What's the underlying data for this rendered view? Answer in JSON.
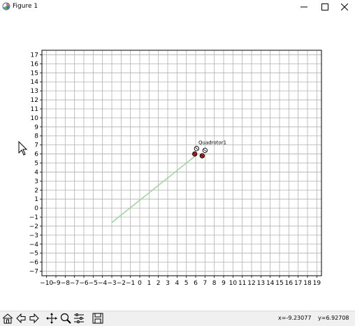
{
  "window": {
    "title": "Figure 1"
  },
  "icons": {
    "app": "matplotlib-figure-icon",
    "minimize": "minimize-icon",
    "maximize": "maximize-icon",
    "close": "close-icon"
  },
  "toolbar": {
    "buttons": [
      {
        "name": "home-button",
        "icon": "home-icon"
      },
      {
        "name": "back-button",
        "icon": "arrow-left-icon"
      },
      {
        "name": "forward-button",
        "icon": "arrow-right-icon"
      },
      {
        "name": "pan-button",
        "icon": "move-icon"
      },
      {
        "name": "zoom-button",
        "icon": "zoom-icon"
      },
      {
        "name": "configure-subplots-button",
        "icon": "sliders-icon"
      },
      {
        "name": "save-button",
        "icon": "save-icon"
      }
    ],
    "coords_x": "x=-9.23077",
    "coords_y": "y=6.92708"
  },
  "chart_data": {
    "type": "line",
    "xlim": [
      -10.5,
      19.5
    ],
    "ylim": [
      -7.5,
      17.5
    ],
    "xticks": [
      -10,
      -9,
      -8,
      -7,
      -6,
      -5,
      -4,
      -3,
      -2,
      -1,
      0,
      1,
      2,
      3,
      4,
      5,
      6,
      7,
      8,
      9,
      10,
      11,
      12,
      13,
      14,
      15,
      16,
      17,
      18,
      19
    ],
    "yticks": [
      -7,
      -6,
      -5,
      -4,
      -3,
      -2,
      -1,
      0,
      1,
      2,
      3,
      4,
      5,
      6,
      7,
      8,
      9,
      10,
      11,
      12,
      13,
      14,
      15,
      16,
      17
    ],
    "grid": true,
    "path": {
      "x": [
        -3,
        6.1
      ],
      "y": [
        -1.6,
        5.9
      ],
      "color": "#9fd49f"
    },
    "drone": {
      "label": "Quadrotor1",
      "rotors": [
        {
          "x": 6.1,
          "y": 6.6,
          "color": "#ffffff"
        },
        {
          "x": 7.0,
          "y": 6.4,
          "color": "#ffffff"
        },
        {
          "x": 5.9,
          "y": 6.0,
          "color": "#cc2222"
        },
        {
          "x": 6.7,
          "y": 5.8,
          "color": "#cc2222"
        }
      ],
      "label_x": 6.3,
      "label_y": 7.1
    }
  }
}
